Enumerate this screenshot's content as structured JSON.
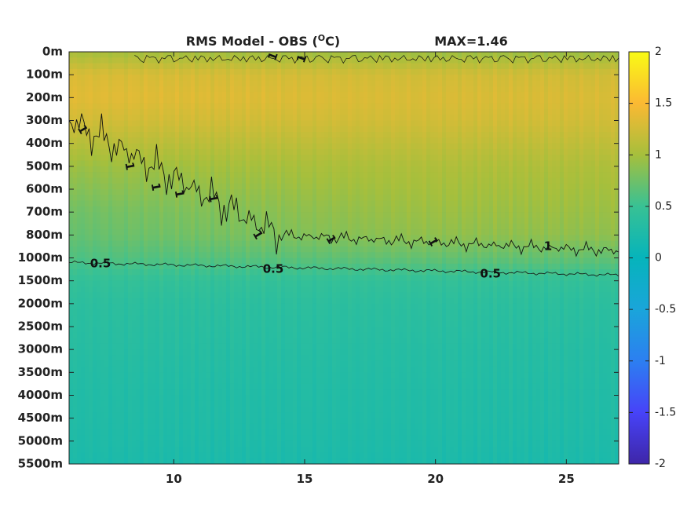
{
  "chart_data": {
    "type": "heatmap",
    "title": "RMS Model - OBS (",
    "title_unit_sup": "O",
    "title_unit_tail": "C)",
    "max_label": "MAX=1.46",
    "xlabel": "",
    "ylabel": "",
    "xlim": [
      6,
      27
    ],
    "x_ticks": [
      10,
      15,
      20,
      25
    ],
    "depth_ticks": [
      "0m",
      "100m",
      "200m",
      "300m",
      "400m",
      "500m",
      "600m",
      "700m",
      "800m",
      "1000m",
      "1500m",
      "2000m",
      "2500m",
      "3000m",
      "3500m",
      "4000m",
      "4500m",
      "5000m",
      "5500m"
    ],
    "colorbar": {
      "range": [
        -2,
        2
      ],
      "ticks": [
        "2",
        "1.5",
        "1",
        "0.5",
        "0",
        "-0.5",
        "-1",
        "-1.5",
        "-2"
      ],
      "colormap": "parula"
    },
    "field_profile": {
      "depth_index": [
        0,
        1,
        2,
        3,
        4,
        5,
        6,
        7,
        8,
        9,
        10,
        11,
        12,
        13,
        14,
        15,
        16,
        17,
        18
      ],
      "value_deep_side": [
        0.95,
        1.25,
        1.3,
        1.25,
        1.15,
        1.05,
        1.0,
        0.95,
        0.9,
        0.7,
        0.45,
        0.38,
        0.35,
        0.32,
        0.3,
        0.28,
        0.27,
        0.25,
        0.22
      ],
      "value_shallow_side": [
        1.0,
        1.3,
        1.35,
        1.25,
        1.1,
        0.95,
        0.85,
        0.75,
        0.7,
        0.6,
        0.45,
        0.38,
        0.35,
        0.33,
        0.3,
        0.28,
        0.27,
        0.25,
        0.22
      ]
    },
    "contours": [
      {
        "level": "1",
        "labels": [
          "1",
          "1",
          "1",
          "1",
          "1",
          "1",
          "1",
          "1",
          "1",
          "1"
        ]
      },
      {
        "level": "0.5",
        "labels": [
          "0.5",
          "0.5",
          "0.5"
        ]
      }
    ]
  }
}
